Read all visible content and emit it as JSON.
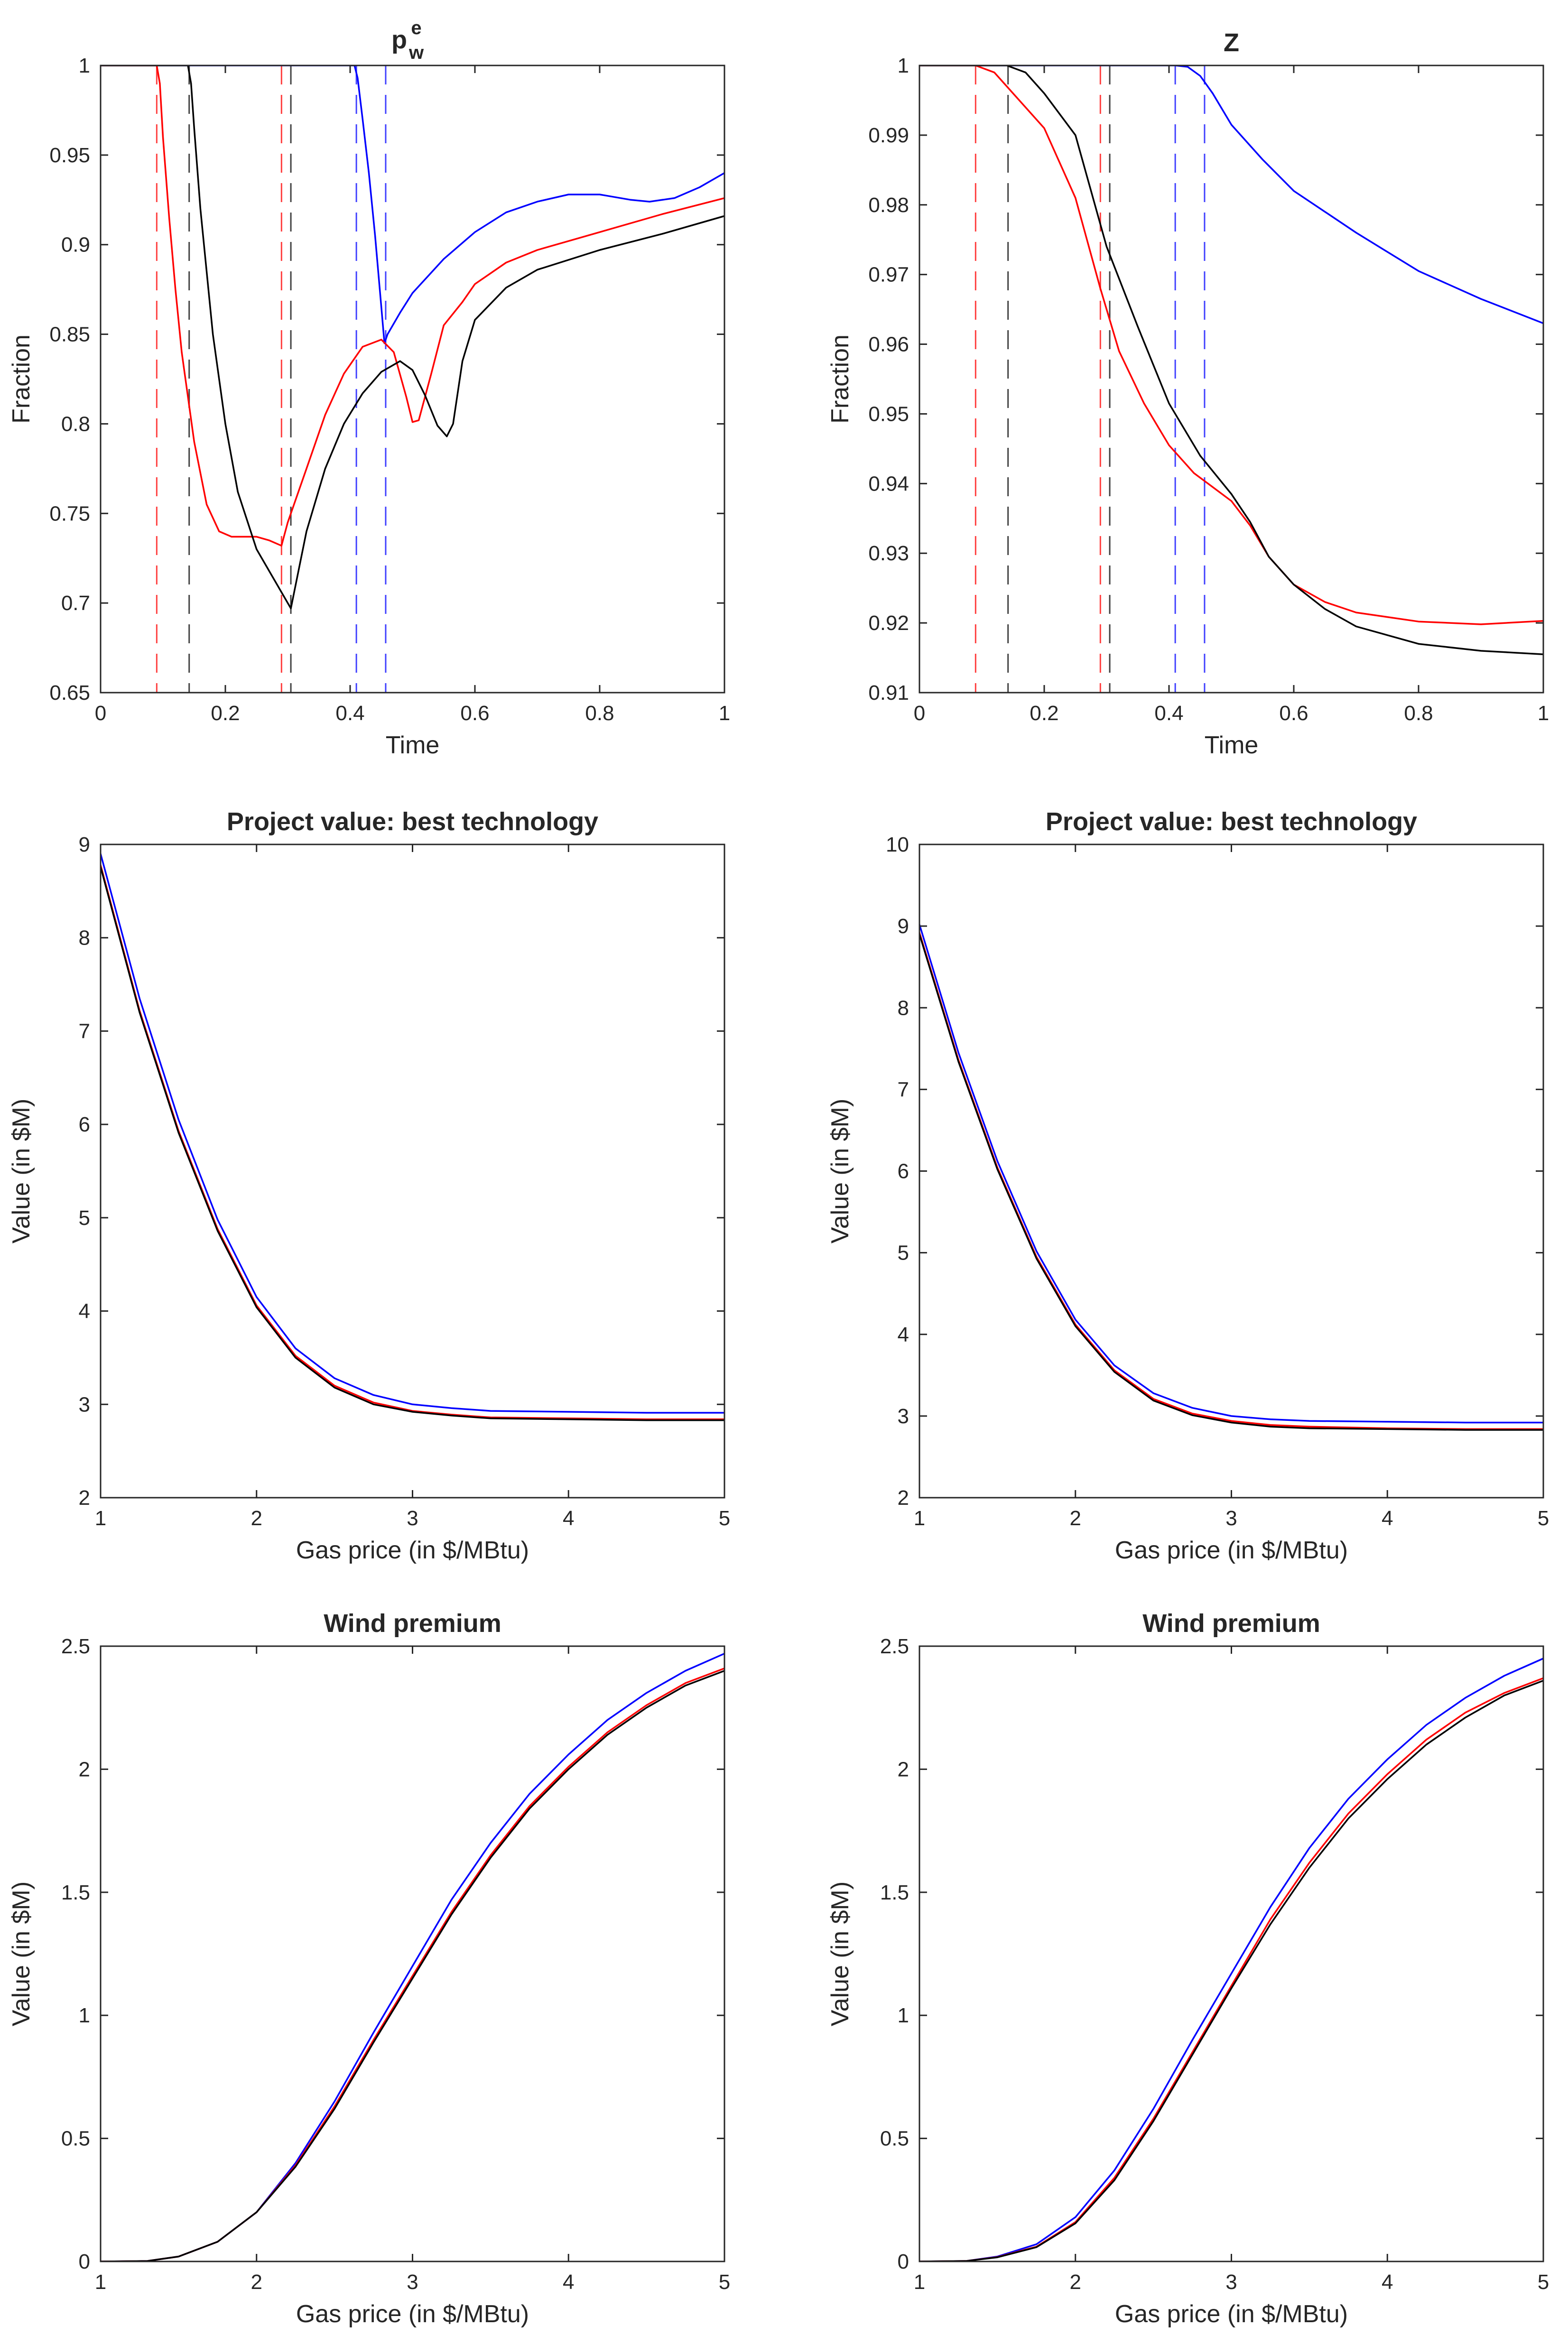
{
  "chart_data": [
    {
      "id": "p1",
      "type": "line",
      "title": "p",
      "title_superscript": "e",
      "title_subscript": "w",
      "xlabel": "Time",
      "ylabel": "Fraction",
      "xlim": [
        0,
        1
      ],
      "ylim": [
        0.65,
        1
      ],
      "xticks": [
        0,
        0.2,
        0.4,
        0.6,
        0.8,
        1
      ],
      "xtick_labels": [
        "0",
        "0.2",
        "0.4",
        "0.6",
        "0.8",
        "1"
      ],
      "yticks": [
        0.65,
        0.7,
        0.75,
        0.8,
        0.85,
        0.9,
        0.95,
        1
      ],
      "ytick_labels": [
        "0.65",
        "0.7",
        "0.75",
        "0.8",
        "0.85",
        "0.9",
        "0.95",
        "1"
      ],
      "series": [
        {
          "name": "blue",
          "color": "#0000ff",
          "x": [
            0,
            0.407,
            0.412,
            0.42,
            0.43,
            0.44,
            0.45,
            0.455,
            0.46,
            0.48,
            0.5,
            0.55,
            0.6,
            0.65,
            0.7,
            0.75,
            0.8,
            0.85,
            0.88,
            0.92,
            0.96,
            1
          ],
          "y": [
            1,
            1,
            0.993,
            0.97,
            0.94,
            0.905,
            0.865,
            0.845,
            0.85,
            0.862,
            0.873,
            0.892,
            0.907,
            0.918,
            0.924,
            0.928,
            0.928,
            0.925,
            0.924,
            0.926,
            0.932,
            0.94
          ]
        },
        {
          "name": "red",
          "color": "#ff0000",
          "x": [
            0,
            0.09,
            0.095,
            0.1,
            0.11,
            0.12,
            0.13,
            0.15,
            0.17,
            0.19,
            0.21,
            0.25,
            0.27,
            0.29,
            0.3,
            0.33,
            0.36,
            0.39,
            0.42,
            0.45,
            0.47,
            0.49,
            0.5,
            0.51,
            0.53,
            0.55,
            0.58,
            0.6,
            0.65,
            0.7,
            0.8,
            0.9,
            1
          ],
          "y": [
            1,
            1,
            0.99,
            0.96,
            0.915,
            0.875,
            0.84,
            0.79,
            0.755,
            0.74,
            0.737,
            0.737,
            0.735,
            0.732,
            0.745,
            0.775,
            0.805,
            0.828,
            0.843,
            0.847,
            0.84,
            0.815,
            0.801,
            0.802,
            0.828,
            0.855,
            0.868,
            0.878,
            0.89,
            0.897,
            0.907,
            0.917,
            0.926
          ]
        },
        {
          "name": "black",
          "color": "#000000",
          "x": [
            0,
            0.14,
            0.145,
            0.15,
            0.16,
            0.18,
            0.2,
            0.22,
            0.25,
            0.28,
            0.3,
            0.305,
            0.33,
            0.36,
            0.39,
            0.42,
            0.45,
            0.48,
            0.5,
            0.52,
            0.54,
            0.555,
            0.565,
            0.58,
            0.6,
            0.65,
            0.7,
            0.8,
            0.9,
            1
          ],
          "y": [
            1,
            1,
            0.99,
            0.965,
            0.92,
            0.85,
            0.8,
            0.762,
            0.73,
            0.712,
            0.7,
            0.697,
            0.74,
            0.775,
            0.8,
            0.817,
            0.829,
            0.835,
            0.83,
            0.816,
            0.799,
            0.793,
            0.8,
            0.835,
            0.858,
            0.876,
            0.886,
            0.897,
            0.906,
            0.916
          ]
        }
      ],
      "vlines": [
        {
          "x": 0.09,
          "color": "#ff0000"
        },
        {
          "x": 0.29,
          "color": "#ff0000"
        },
        {
          "x": 0.142,
          "color": "#000000"
        },
        {
          "x": 0.305,
          "color": "#000000"
        },
        {
          "x": 0.41,
          "color": "#0000ff"
        },
        {
          "x": 0.457,
          "color": "#0000ff"
        }
      ]
    },
    {
      "id": "p2",
      "type": "line",
      "title": "Z",
      "xlabel": "Time",
      "ylabel": "Fraction",
      "xlim": [
        0,
        1
      ],
      "ylim": [
        0.91,
        1
      ],
      "xticks": [
        0,
        0.2,
        0.4,
        0.6,
        0.8,
        1
      ],
      "xtick_labels": [
        "0",
        "0.2",
        "0.4",
        "0.6",
        "0.8",
        "1"
      ],
      "yticks": [
        0.91,
        0.92,
        0.93,
        0.94,
        0.95,
        0.96,
        0.97,
        0.98,
        0.99,
        1
      ],
      "ytick_labels": [
        "0.91",
        "0.92",
        "0.93",
        "0.94",
        "0.95",
        "0.96",
        "0.97",
        "0.98",
        "0.99",
        "1"
      ],
      "series": [
        {
          "name": "blue",
          "color": "#0000ff",
          "x": [
            0,
            0.41,
            0.43,
            0.45,
            0.47,
            0.5,
            0.55,
            0.6,
            0.7,
            0.8,
            0.9,
            1
          ],
          "y": [
            1,
            1,
            0.9998,
            0.9985,
            0.996,
            0.9915,
            0.9865,
            0.982,
            0.976,
            0.9705,
            0.9665,
            0.963
          ]
        },
        {
          "name": "red",
          "color": "#ff0000",
          "x": [
            0,
            0.09,
            0.12,
            0.15,
            0.2,
            0.25,
            0.29,
            0.32,
            0.36,
            0.4,
            0.44,
            0.47,
            0.5,
            0.53,
            0.56,
            0.6,
            0.65,
            0.7,
            0.8,
            0.9,
            1
          ],
          "y": [
            1,
            1,
            0.999,
            0.996,
            0.991,
            0.981,
            0.968,
            0.959,
            0.9515,
            0.9455,
            0.9415,
            0.9395,
            0.9375,
            0.934,
            0.9295,
            0.9255,
            0.923,
            0.9215,
            0.9202,
            0.9198,
            0.9203
          ]
        },
        {
          "name": "black",
          "color": "#000000",
          "x": [
            0,
            0.14,
            0.17,
            0.2,
            0.25,
            0.3,
            0.35,
            0.4,
            0.45,
            0.5,
            0.53,
            0.56,
            0.6,
            0.65,
            0.7,
            0.8,
            0.9,
            1
          ],
          "y": [
            1,
            1,
            0.999,
            0.996,
            0.99,
            0.974,
            0.9625,
            0.9515,
            0.944,
            0.9385,
            0.9345,
            0.9295,
            0.9255,
            0.922,
            0.9195,
            0.917,
            0.916,
            0.9155
          ]
        }
      ],
      "vlines": [
        {
          "x": 0.09,
          "color": "#ff0000"
        },
        {
          "x": 0.29,
          "color": "#ff0000"
        },
        {
          "x": 0.142,
          "color": "#000000"
        },
        {
          "x": 0.305,
          "color": "#000000"
        },
        {
          "x": 0.41,
          "color": "#0000ff"
        },
        {
          "x": 0.457,
          "color": "#0000ff"
        }
      ]
    },
    {
      "id": "p3",
      "type": "line",
      "title": "Project value: best technology",
      "xlabel": "Gas price (in $/MBtu)",
      "ylabel": "Value (in $M)",
      "xlim": [
        1,
        5
      ],
      "ylim": [
        2,
        9
      ],
      "xticks": [
        1,
        2,
        3,
        4,
        5
      ],
      "xtick_labels": [
        "1",
        "2",
        "3",
        "4",
        "5"
      ],
      "yticks": [
        2,
        3,
        4,
        5,
        6,
        7,
        8,
        9
      ],
      "ytick_labels": [
        "2",
        "3",
        "4",
        "5",
        "6",
        "7",
        "8",
        "9"
      ],
      "series": [
        {
          "name": "blue",
          "color": "#0000ff",
          "x": [
            1,
            1.25,
            1.5,
            1.75,
            2,
            2.25,
            2.5,
            2.75,
            3,
            3.25,
            3.5,
            4,
            4.5,
            5
          ],
          "y": [
            8.9,
            7.35,
            6.05,
            4.98,
            4.15,
            3.6,
            3.28,
            3.1,
            3.0,
            2.96,
            2.93,
            2.92,
            2.91,
            2.91
          ]
        },
        {
          "name": "red",
          "color": "#ff0000",
          "x": [
            1,
            1.25,
            1.5,
            1.75,
            2,
            2.25,
            2.5,
            2.75,
            3,
            3.25,
            3.5,
            4,
            4.5,
            5
          ],
          "y": [
            8.78,
            7.22,
            5.93,
            4.88,
            4.06,
            3.52,
            3.2,
            3.02,
            2.93,
            2.89,
            2.86,
            2.85,
            2.84,
            2.84
          ]
        },
        {
          "name": "black",
          "color": "#000000",
          "x": [
            1,
            1.25,
            1.5,
            1.75,
            2,
            2.25,
            2.5,
            2.75,
            3,
            3.25,
            3.5,
            4,
            4.5,
            5
          ],
          "y": [
            8.76,
            7.2,
            5.91,
            4.86,
            4.04,
            3.5,
            3.18,
            3.0,
            2.92,
            2.88,
            2.85,
            2.84,
            2.83,
            2.83
          ]
        }
      ]
    },
    {
      "id": "p4",
      "type": "line",
      "title": "Project value: best technology",
      "xlabel": "Gas price (in $/MBtu)",
      "ylabel": "Value (in $M)",
      "xlim": [
        1,
        5
      ],
      "ylim": [
        2,
        10
      ],
      "xticks": [
        1,
        2,
        3,
        4,
        5
      ],
      "xtick_labels": [
        "1",
        "2",
        "3",
        "4",
        "5"
      ],
      "yticks": [
        2,
        3,
        4,
        5,
        6,
        7,
        8,
        9,
        10
      ],
      "ytick_labels": [
        "2",
        "3",
        "4",
        "5",
        "6",
        "7",
        "8",
        "9",
        "10"
      ],
      "series": [
        {
          "name": "blue",
          "color": "#0000ff",
          "x": [
            1,
            1.25,
            1.5,
            1.75,
            2,
            2.25,
            2.5,
            2.75,
            3,
            3.25,
            3.5,
            4,
            4.5,
            5
          ],
          "y": [
            9.02,
            7.45,
            6.12,
            5.02,
            4.18,
            3.62,
            3.28,
            3.1,
            3.0,
            2.96,
            2.94,
            2.93,
            2.92,
            2.92
          ]
        },
        {
          "name": "red",
          "color": "#ff0000",
          "x": [
            1,
            1.25,
            1.5,
            1.75,
            2,
            2.25,
            2.5,
            2.75,
            3,
            3.25,
            3.5,
            4,
            4.5,
            5
          ],
          "y": [
            8.92,
            7.36,
            6.04,
            4.95,
            4.12,
            3.56,
            3.21,
            3.03,
            2.94,
            2.89,
            2.87,
            2.85,
            2.84,
            2.84
          ]
        },
        {
          "name": "black",
          "color": "#000000",
          "x": [
            1,
            1.25,
            1.5,
            1.75,
            2,
            2.25,
            2.5,
            2.75,
            3,
            3.25,
            3.5,
            4,
            4.5,
            5
          ],
          "y": [
            8.9,
            7.34,
            6.02,
            4.93,
            4.1,
            3.54,
            3.19,
            3.01,
            2.92,
            2.87,
            2.85,
            2.84,
            2.83,
            2.83
          ]
        }
      ]
    },
    {
      "id": "p5",
      "type": "line",
      "title": "Wind premium",
      "xlabel": "Gas price (in $/MBtu)",
      "ylabel": "Value (in $M)",
      "xlim": [
        1,
        5
      ],
      "ylim": [
        0,
        2.5
      ],
      "xticks": [
        1,
        2,
        3,
        4,
        5
      ],
      "xtick_labels": [
        "1",
        "2",
        "3",
        "4",
        "5"
      ],
      "yticks": [
        0,
        0.5,
        1,
        1.5,
        2,
        2.5
      ],
      "ytick_labels": [
        "0",
        "0.5",
        "1",
        "1.5",
        "2",
        "2.5"
      ],
      "series": [
        {
          "name": "blue",
          "color": "#0000ff",
          "x": [
            1,
            1.3,
            1.5,
            1.75,
            2,
            2.25,
            2.5,
            2.75,
            3,
            3.25,
            3.5,
            3.75,
            4,
            4.25,
            4.5,
            4.75,
            5
          ],
          "y": [
            0,
            0.002,
            0.02,
            0.08,
            0.2,
            0.4,
            0.65,
            0.93,
            1.2,
            1.47,
            1.7,
            1.9,
            2.06,
            2.2,
            2.31,
            2.4,
            2.47
          ]
        },
        {
          "name": "red",
          "color": "#ff0000",
          "x": [
            1,
            1.3,
            1.5,
            1.75,
            2,
            2.25,
            2.5,
            2.75,
            3,
            3.25,
            3.5,
            3.75,
            4,
            4.25,
            4.5,
            4.75,
            5
          ],
          "y": [
            0,
            0.002,
            0.02,
            0.08,
            0.2,
            0.39,
            0.63,
            0.9,
            1.16,
            1.42,
            1.65,
            1.85,
            2.01,
            2.15,
            2.26,
            2.35,
            2.41
          ]
        },
        {
          "name": "black",
          "color": "#000000",
          "x": [
            1,
            1.3,
            1.5,
            1.75,
            2,
            2.25,
            2.5,
            2.75,
            3,
            3.25,
            3.5,
            3.75,
            4,
            4.25,
            4.5,
            4.75,
            5
          ],
          "y": [
            0,
            0.002,
            0.02,
            0.08,
            0.2,
            0.385,
            0.62,
            0.89,
            1.15,
            1.41,
            1.64,
            1.84,
            2.0,
            2.14,
            2.25,
            2.34,
            2.4
          ]
        }
      ]
    },
    {
      "id": "p6",
      "type": "line",
      "title": "Wind premium",
      "xlabel": "Gas price (in $/MBtu)",
      "ylabel": "Value (in $M)",
      "xlim": [
        1,
        5
      ],
      "ylim": [
        0,
        2.5
      ],
      "xticks": [
        1,
        2,
        3,
        4,
        5
      ],
      "xtick_labels": [
        "1",
        "2",
        "3",
        "4",
        "5"
      ],
      "yticks": [
        0,
        0.5,
        1,
        1.5,
        2,
        2.5
      ],
      "ytick_labels": [
        "0",
        "0.5",
        "1",
        "1.5",
        "2",
        "2.5"
      ],
      "series": [
        {
          "name": "blue",
          "color": "#0000ff",
          "x": [
            1,
            1.3,
            1.5,
            1.75,
            2,
            2.25,
            2.5,
            2.75,
            3,
            3.25,
            3.5,
            3.75,
            4,
            4.25,
            4.5,
            4.75,
            5
          ],
          "y": [
            0,
            0.002,
            0.02,
            0.07,
            0.18,
            0.37,
            0.62,
            0.9,
            1.17,
            1.44,
            1.68,
            1.88,
            2.04,
            2.18,
            2.29,
            2.38,
            2.45
          ]
        },
        {
          "name": "red",
          "color": "#ff0000",
          "x": [
            1,
            1.3,
            1.5,
            1.75,
            2,
            2.25,
            2.5,
            2.75,
            3,
            3.25,
            3.5,
            3.75,
            4,
            4.25,
            4.5,
            4.75,
            5
          ],
          "y": [
            0,
            0.002,
            0.018,
            0.06,
            0.16,
            0.34,
            0.58,
            0.85,
            1.12,
            1.39,
            1.62,
            1.82,
            1.98,
            2.12,
            2.23,
            2.31,
            2.37
          ]
        },
        {
          "name": "black",
          "color": "#000000",
          "x": [
            1,
            1.3,
            1.5,
            1.75,
            2,
            2.25,
            2.5,
            2.75,
            3,
            3.25,
            3.5,
            3.75,
            4,
            4.25,
            4.5,
            4.75,
            5
          ],
          "y": [
            0,
            0.002,
            0.017,
            0.058,
            0.155,
            0.33,
            0.57,
            0.84,
            1.11,
            1.37,
            1.6,
            1.8,
            1.96,
            2.1,
            2.21,
            2.3,
            2.36
          ]
        }
      ]
    }
  ]
}
